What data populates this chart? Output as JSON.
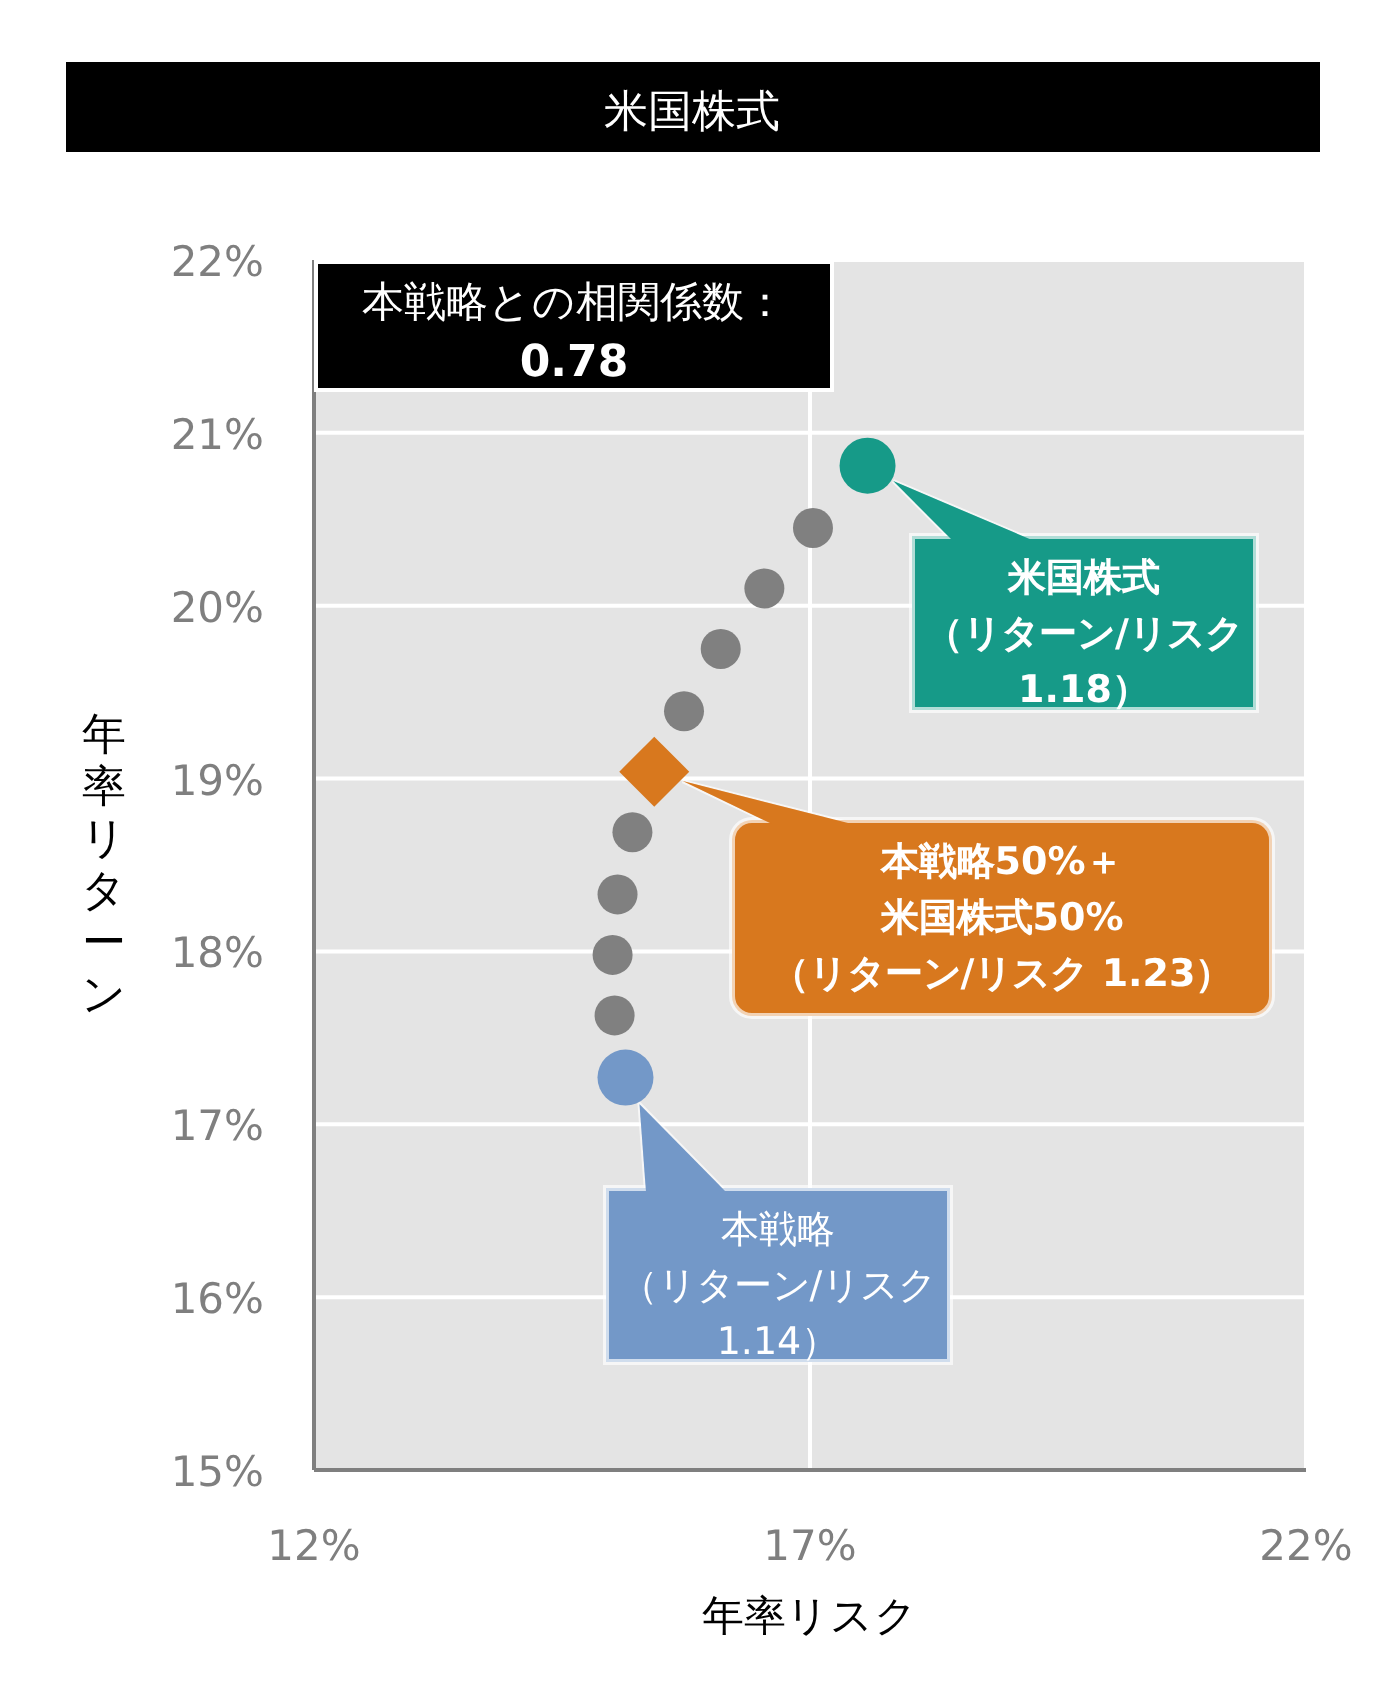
{
  "chart_data": {
    "type": "scatter",
    "title": "米国株式",
    "xlabel": "年率リスク",
    "ylabel": "年率リターン",
    "xlim": [
      12,
      22
    ],
    "xticks": [
      {
        "value": 12,
        "label": "12%"
      },
      {
        "value": 17,
        "label": "17%"
      },
      {
        "value": 22,
        "label": "22%"
      }
    ],
    "ylim": [
      15,
      22
    ],
    "yticks": [
      {
        "value": 15,
        "label": "15%"
      },
      {
        "value": 16,
        "label": "16%"
      },
      {
        "value": 17,
        "label": "17%"
      },
      {
        "value": 18,
        "label": "18%"
      },
      {
        "value": 19,
        "label": "19%"
      },
      {
        "value": 20,
        "label": "20%"
      },
      {
        "value": 21,
        "label": "21%"
      },
      {
        "value": 22,
        "label": "22%"
      }
    ],
    "grid": true,
    "marker": "circle",
    "series": [
      {
        "color": "#808080",
        "x": [
          15.03,
          15.01,
          15.06,
          15.21,
          15.73,
          16.1,
          16.54,
          17.03
        ],
        "values": [
          17.63,
          17.98,
          18.33,
          18.69,
          19.39,
          19.75,
          20.1,
          20.45
        ]
      },
      {
        "color": "#7398c8",
        "x": [
          15.14
        ],
        "values": [
          17.27
        ]
      },
      {
        "color": "#d8781e",
        "marker": "diamond",
        "x": [
          15.43
        ],
        "values": [
          19.04
        ]
      },
      {
        "color": "#169a88",
        "x": [
          17.58
        ],
        "values": [
          20.81
        ]
      }
    ],
    "annotations": [
      "本戦略との相関係数：",
      "0.78",
      "本戦略（リターン/リスク1.14）",
      "本戦略50%＋米国株式50%（リターン/リスク 1.23）",
      {
        "text": "米国株式（リターン/リスク1.18）",
        "x": 17.58,
        "y": 20.81
      }
    ]
  }
}
